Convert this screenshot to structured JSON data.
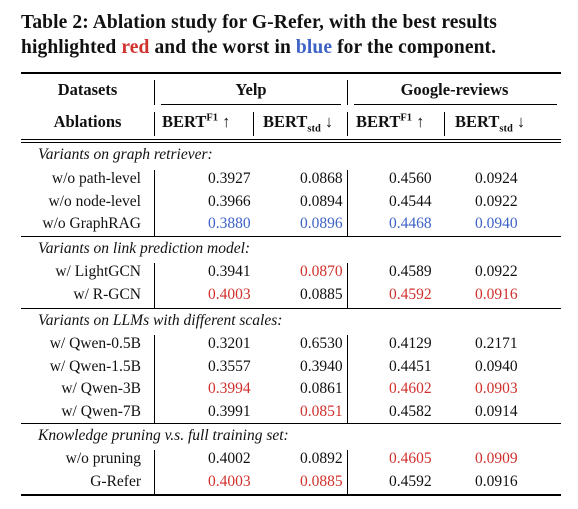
{
  "caption": {
    "part1": "Table 2: Ablation study for G-Refer, with the best results highlighted ",
    "red_word": "red",
    "part2": " and the worst in ",
    "blue_word": "blue",
    "part3": " for the component."
  },
  "colors": {
    "best": "#d0312d",
    "worst": "#3e63c7"
  },
  "header": {
    "datasets": "Datasets",
    "ablations": "Ablations",
    "yelp": "Yelp",
    "google": "Google-reviews",
    "metric_f1": "BERT",
    "metric_f1_sup": "F1",
    "metric_f1_arrow": " ↑",
    "metric_std": "BERT",
    "metric_std_sub": "std",
    "metric_std_arrow": " ↓"
  },
  "sections": [
    {
      "title": "Variants on graph retriever:",
      "rows": [
        {
          "name": "w/o path-level",
          "vals": [
            "0.3927",
            "0.0868",
            "0.4560",
            "0.0924"
          ],
          "hl": [
            "",
            "",
            "",
            ""
          ]
        },
        {
          "name": "w/o node-level",
          "vals": [
            "0.3966",
            "0.0894",
            "0.4544",
            "0.0922"
          ],
          "hl": [
            "",
            "",
            "",
            ""
          ]
        },
        {
          "name": "w/o GraphRAG",
          "vals": [
            "0.3880",
            "0.0896",
            "0.4468",
            "0.0940"
          ],
          "hl": [
            "blue",
            "blue",
            "blue",
            "blue"
          ]
        }
      ]
    },
    {
      "title": "Variants on link prediction model:",
      "rows": [
        {
          "name": "w/ LightGCN",
          "vals": [
            "0.3941",
            "0.0870",
            "0.4589",
            "0.0922"
          ],
          "hl": [
            "",
            "red",
            "",
            ""
          ]
        },
        {
          "name": "w/ R-GCN",
          "vals": [
            "0.4003",
            "0.0885",
            "0.4592",
            "0.0916"
          ],
          "hl": [
            "red",
            "",
            "red",
            "red"
          ]
        }
      ]
    },
    {
      "title": "Variants on LLMs with different scales:",
      "rows": [
        {
          "name": "w/ Qwen-0.5B",
          "vals": [
            "0.3201",
            "0.6530",
            "0.4129",
            "0.2171"
          ],
          "hl": [
            "",
            "",
            "",
            ""
          ]
        },
        {
          "name": "w/ Qwen-1.5B",
          "vals": [
            "0.3557",
            "0.3940",
            "0.4451",
            "0.0940"
          ],
          "hl": [
            "",
            "",
            "",
            ""
          ]
        },
        {
          "name": "w/ Qwen-3B",
          "vals": [
            "0.3994",
            "0.0861",
            "0.4602",
            "0.0903"
          ],
          "hl": [
            "red",
            "",
            "red",
            "red"
          ]
        },
        {
          "name": "w/ Qwen-7B",
          "vals": [
            "0.3991",
            "0.0851",
            "0.4582",
            "0.0914"
          ],
          "hl": [
            "",
            "red",
            "",
            ""
          ]
        }
      ]
    },
    {
      "title": "Knowledge pruning v.s. full training set:",
      "rows": [
        {
          "name": "w/o pruning",
          "vals": [
            "0.4002",
            "0.0892",
            "0.4605",
            "0.0909"
          ],
          "hl": [
            "",
            "",
            "red",
            "red"
          ]
        },
        {
          "name": "G-Refer",
          "vals": [
            "0.4003",
            "0.0885",
            "0.4592",
            "0.0916"
          ],
          "hl": [
            "red",
            "red",
            "",
            ""
          ]
        }
      ]
    }
  ]
}
